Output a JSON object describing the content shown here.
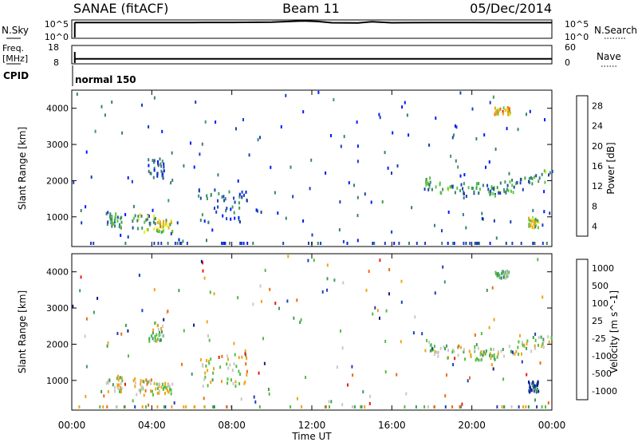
{
  "header": {
    "station": "SANAE (fitACF)",
    "beam": "Beam 11",
    "date": "05/Dec/2014"
  },
  "top_panels": {
    "nsky_label": "N.Sky",
    "nsearch_label": "N.Search",
    "nsky_ticks": [
      "10^5",
      "10^0"
    ],
    "nsearch_ticks": [
      "10^5",
      "10^0"
    ],
    "freq_label": "Freq.",
    "freq_unit": "[MHz]",
    "freq_ticks": [
      "18",
      "8"
    ],
    "nave_label": "Nave",
    "nave_ticks": [
      "60",
      "0"
    ],
    "cpid_label": "CPID",
    "cpid_value": "normal 150"
  },
  "x_ticks": [
    "00:00",
    "04:00",
    "08:00",
    "12:00",
    "16:00",
    "20:00",
    "00:00"
  ],
  "x_label": "Time UT",
  "colors": {
    "power": [
      "#0018ff",
      "#1d3fb8",
      "#3b7e7a",
      "#3c9c5b",
      "#57c83a",
      "#ecec1a",
      "#f0a418",
      "#f06a12",
      "#e81c10"
    ],
    "velocity": [
      "#e81c10",
      "#f06a12",
      "#f0a418",
      "#c8c8c8",
      "#50c040",
      "#3c9c5b",
      "#1d3fb8",
      "#102080"
    ]
  },
  "chart_data": [
    {
      "type": "line",
      "title": "",
      "xlabel": "Time UT",
      "x_range_hours": [
        0,
        24
      ],
      "series": [
        {
          "name": "N.Sky",
          "x": [
            0.15,
            2,
            4,
            6,
            8,
            10,
            11.5,
            12.3,
            13,
            14.3,
            15,
            16,
            18,
            20,
            22,
            24
          ],
          "y": [
            30000,
            30000,
            30000,
            30000,
            32000,
            40000,
            90000,
            60000,
            25000,
            22000,
            50000,
            25000,
            28000,
            30000,
            27000,
            27000
          ]
        }
      ]
    },
    {
      "type": "line",
      "xlabel": "Time UT",
      "x_range_hours": [
        0,
        24
      ],
      "ylim": [
        8,
        18
      ],
      "series": [
        {
          "name": "Freq.",
          "x": [
            0.15,
            24
          ],
          "y": [
            10.5,
            10.5
          ]
        },
        {
          "name": "Nave",
          "x": [
            0.15,
            24
          ],
          "y": [
            15,
            15
          ]
        }
      ]
    },
    {
      "type": "heatmap",
      "xlabel": "Time UT",
      "ylabel": "Slant Range [km]",
      "y_ticks": [
        "1000",
        "2000",
        "3000",
        "4000"
      ],
      "ylim": [
        180,
        4500
      ],
      "colorbar_label": "Power [dB]",
      "colorbar_ticks": [
        "4",
        "8",
        "12",
        "16",
        "20",
        "24",
        "28"
      ],
      "clim": [
        2,
        30
      ],
      "regions": [
        {
          "t0": 1.7,
          "t1": 2.5,
          "r0": 650,
          "r1": 1100,
          "mean": 11
        },
        {
          "t0": 3.0,
          "t1": 4.2,
          "r0": 550,
          "r1": 1050,
          "mean": 13
        },
        {
          "t0": 4.2,
          "t1": 5.0,
          "r0": 550,
          "r1": 900,
          "mean": 18
        },
        {
          "t0": 3.7,
          "t1": 4.6,
          "r0": 2050,
          "r1": 2600,
          "mean": 7
        },
        {
          "t0": 6.3,
          "t1": 8.8,
          "r0": 800,
          "r1": 1700,
          "mean": 9
        },
        {
          "t0": 17.6,
          "t1": 24,
          "r0": 1550,
          "r1": 2350,
          "mean": 12
        },
        {
          "t0": 21.1,
          "t1": 21.9,
          "r0": 3800,
          "r1": 4000,
          "mean": 22
        },
        {
          "t0": 22.8,
          "t1": 23.3,
          "r0": 650,
          "r1": 950,
          "mean": 18
        }
      ]
    },
    {
      "type": "heatmap",
      "xlabel": "Time UT",
      "ylabel": "Slant Range [km]",
      "y_ticks": [
        "1000",
        "2000",
        "3000",
        "4000"
      ],
      "ylim": [
        180,
        4500
      ],
      "colorbar_label": "Velocity [m s^-1]",
      "colorbar_ticks": [
        "1000",
        "500",
        "100",
        "25",
        "-25",
        "-100",
        "-500",
        "-1000"
      ],
      "clim": [
        -1250,
        1250
      ],
      "regions": [
        {
          "t0": 1.7,
          "t1": 2.5,
          "r0": 650,
          "r1": 1100,
          "mean": 80
        },
        {
          "t0": 3.0,
          "t1": 4.2,
          "r0": 550,
          "r1": 1050,
          "mean": 300
        },
        {
          "t0": 4.2,
          "t1": 5.0,
          "r0": 550,
          "r1": 900,
          "mean": 200
        },
        {
          "t0": 3.7,
          "t1": 4.6,
          "r0": 2050,
          "r1": 2600,
          "mean": -100
        },
        {
          "t0": 6.3,
          "t1": 8.8,
          "r0": 800,
          "r1": 1700,
          "mean": 150
        },
        {
          "t0": 17.6,
          "t1": 24,
          "r0": 1550,
          "r1": 2350,
          "mean": 0
        },
        {
          "t0": 21.1,
          "t1": 21.9,
          "r0": 3800,
          "r1": 4000,
          "mean": -300
        },
        {
          "t0": 22.8,
          "t1": 23.3,
          "r0": 650,
          "r1": 950,
          "mean": -900
        }
      ]
    }
  ]
}
